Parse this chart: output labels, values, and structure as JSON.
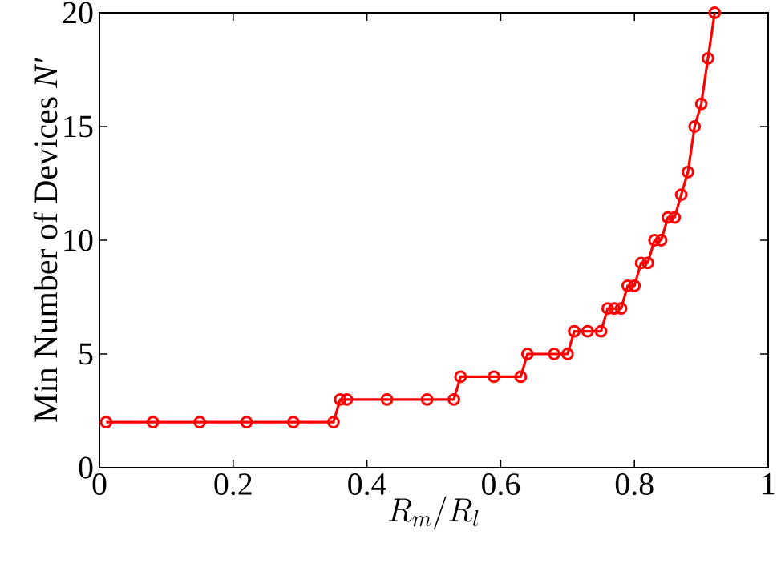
{
  "chart_data": {
    "type": "line",
    "xlabel": "R_m/R_l",
    "ylabel": "Min Number of Devices *N′*",
    "x": [
      0.01,
      0.08,
      0.15,
      0.22,
      0.29,
      0.35,
      0.36,
      0.37,
      0.43,
      0.49,
      0.53,
      0.54,
      0.59,
      0.63,
      0.64,
      0.68,
      0.7,
      0.71,
      0.73,
      0.75,
      0.76,
      0.77,
      0.78,
      0.79,
      0.8,
      0.81,
      0.82,
      0.83,
      0.84,
      0.85,
      0.86,
      0.87,
      0.88,
      0.89,
      0.9,
      0.91,
      0.92
    ],
    "series": [
      {
        "color": "#ff0000",
        "values": [
          2,
          2,
          2,
          2,
          2,
          2,
          3,
          3,
          3,
          3,
          3,
          4,
          4,
          4,
          5,
          5,
          5,
          6,
          6,
          6,
          7,
          7,
          7,
          8,
          8,
          9,
          9,
          10,
          10,
          11,
          11,
          12,
          13,
          15,
          16,
          18,
          20
        ]
      }
    ],
    "marker": "circle",
    "line_style": "solid",
    "xlim": [
      0,
      1
    ],
    "ylim": [
      0,
      20
    ],
    "xticks": [
      0,
      0.2,
      0.4,
      0.6,
      0.8,
      1
    ],
    "yticks": [
      0,
      5,
      10,
      15,
      20
    ]
  }
}
